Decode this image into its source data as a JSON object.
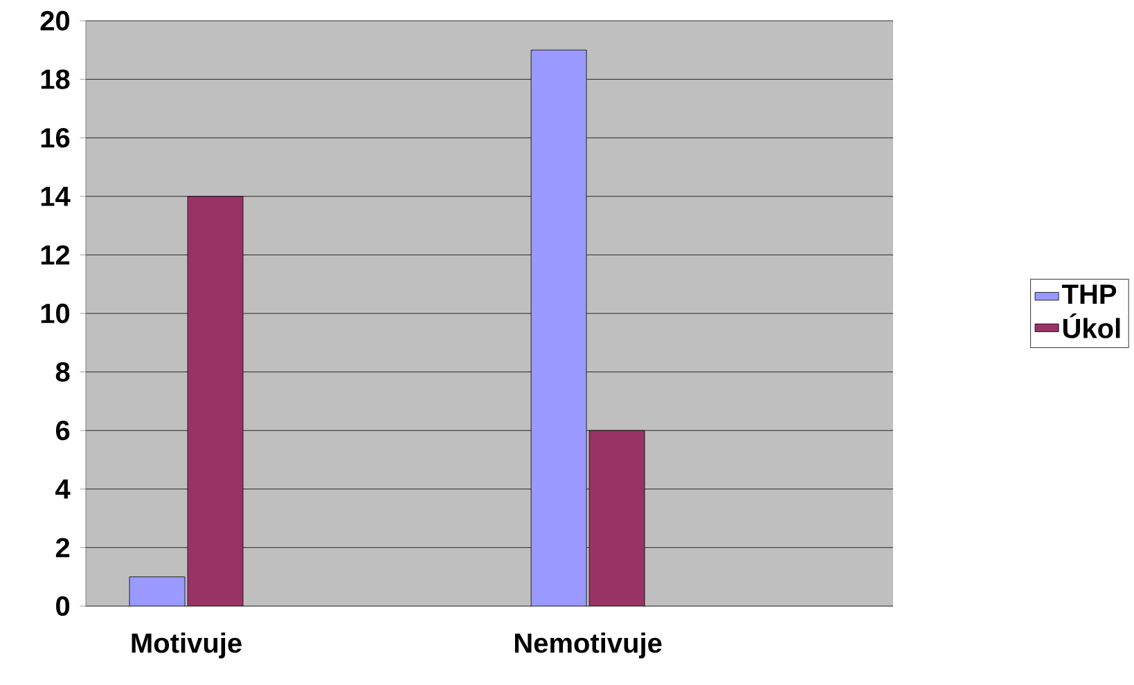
{
  "chart_data": {
    "type": "bar",
    "categories": [
      "Motivuje",
      "Nemotivuje"
    ],
    "series": [
      {
        "name": "THP",
        "color": "#9999ff",
        "values": [
          1,
          19
        ]
      },
      {
        "name": "Úkol",
        "color": "#993366",
        "values": [
          14,
          6
        ]
      }
    ],
    "ylim": [
      0,
      20
    ],
    "yticks": [
      0,
      2,
      4,
      6,
      8,
      10,
      12,
      14,
      16,
      18,
      20
    ],
    "grid": "y",
    "legend": "right"
  }
}
